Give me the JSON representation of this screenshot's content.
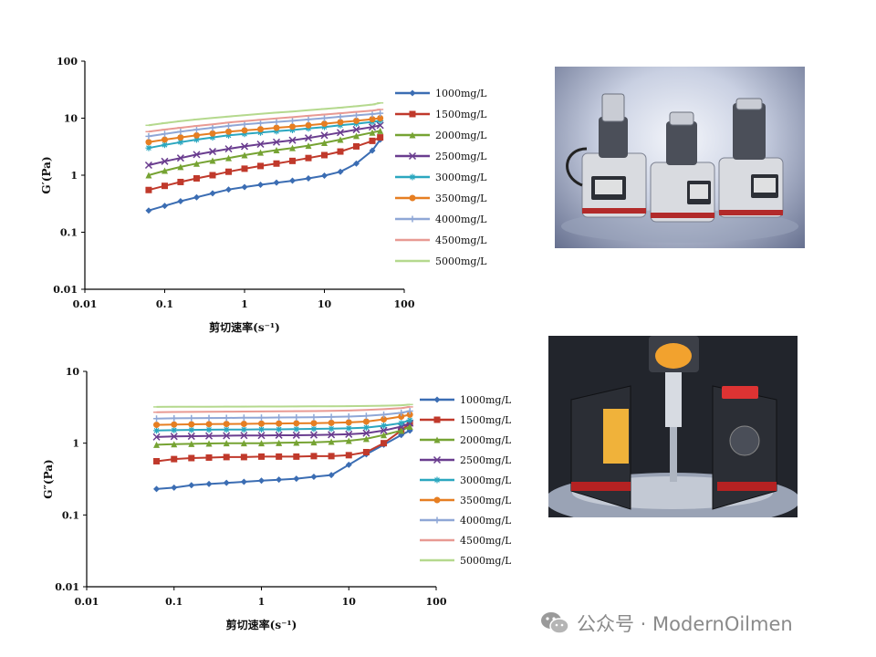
{
  "chart_data": [
    {
      "type": "line",
      "title": "",
      "xlabel": "剪切速率(s⁻¹)",
      "ylabel": "G′(Pa)",
      "xscale": "log",
      "yscale": "log",
      "xlim": [
        0.01,
        100
      ],
      "ylim": [
        0.01,
        100
      ],
      "xticks": [
        "0.01",
        "0.1",
        "1",
        "10",
        "100"
      ],
      "yticks": [
        "0.01",
        "0.1",
        "1",
        "10",
        "100"
      ],
      "grid": false,
      "legend_position": "right",
      "x": [
        0.063,
        0.1,
        0.158,
        0.251,
        0.398,
        0.631,
        1,
        1.585,
        2.512,
        3.981,
        6.31,
        10,
        15.85,
        25.12,
        39.81,
        50
      ],
      "series": [
        {
          "name": "1000mg/L",
          "color": "#3b6db3",
          "marker": "diamond",
          "values": [
            0.24,
            0.29,
            0.35,
            0.41,
            0.48,
            0.56,
            0.62,
            0.68,
            0.74,
            0.8,
            0.88,
            0.98,
            1.15,
            1.6,
            2.7,
            4.2
          ]
        },
        {
          "name": "1500mg/L",
          "color": "#c0392b",
          "marker": "square",
          "values": [
            0.55,
            0.65,
            0.76,
            0.88,
            1.0,
            1.15,
            1.3,
            1.45,
            1.6,
            1.78,
            2.0,
            2.25,
            2.6,
            3.2,
            4.0,
            4.6
          ]
        },
        {
          "name": "2000mg/L",
          "color": "#76a333",
          "marker": "triangle",
          "values": [
            1.0,
            1.2,
            1.4,
            1.6,
            1.8,
            2.0,
            2.25,
            2.5,
            2.75,
            3.0,
            3.3,
            3.7,
            4.2,
            4.9,
            5.6,
            6.0
          ]
        },
        {
          "name": "2500mg/L",
          "color": "#6a3d8f",
          "marker": "x",
          "values": [
            1.5,
            1.75,
            2.0,
            2.3,
            2.6,
            2.9,
            3.2,
            3.5,
            3.8,
            4.1,
            4.5,
            5.0,
            5.6,
            6.3,
            7.0,
            7.5
          ]
        },
        {
          "name": "3000mg/L",
          "color": "#2ba7bf",
          "marker": "star",
          "values": [
            3.0,
            3.4,
            3.8,
            4.2,
            4.6,
            5.0,
            5.3,
            5.6,
            5.9,
            6.2,
            6.6,
            7.0,
            7.5,
            8.0,
            8.6,
            9.0
          ]
        },
        {
          "name": "3500mg/L",
          "color": "#e67e22",
          "marker": "circle",
          "values": [
            3.8,
            4.2,
            4.6,
            5.0,
            5.4,
            5.8,
            6.1,
            6.4,
            6.8,
            7.1,
            7.5,
            8.0,
            8.5,
            9.0,
            9.6,
            10.0
          ]
        },
        {
          "name": "4000mg/L",
          "color": "#8fa7d6",
          "marker": "plus",
          "values": [
            4.8,
            5.3,
            5.8,
            6.3,
            6.8,
            7.3,
            7.8,
            8.2,
            8.6,
            9.0,
            9.5,
            10.0,
            10.6,
            11.2,
            11.8,
            12.2
          ]
        },
        {
          "name": "4500mg/L",
          "color": "#e89a93",
          "marker": "dash",
          "values": [
            5.8,
            6.3,
            6.8,
            7.3,
            7.8,
            8.4,
            8.9,
            9.4,
            9.9,
            10.4,
            11.0,
            11.6,
            12.2,
            12.9,
            13.6,
            14.2
          ]
        },
        {
          "name": "5000mg/L",
          "color": "#b5d98e",
          "marker": "dash",
          "values": [
            7.5,
            8.2,
            8.9,
            9.5,
            10.1,
            10.7,
            11.3,
            11.9,
            12.5,
            13.1,
            13.8,
            14.5,
            15.3,
            16.2,
            17.3,
            18.5
          ]
        }
      ]
    },
    {
      "type": "line",
      "title": "",
      "xlabel": "剪切速率(s⁻¹)",
      "ylabel": "G″(Pa)",
      "xscale": "log",
      "yscale": "log",
      "xlim": [
        0.01,
        100
      ],
      "ylim": [
        0.01,
        10
      ],
      "xticks": [
        "0.01",
        "0.1",
        "1",
        "10",
        "100"
      ],
      "yticks": [
        "0.01",
        "0.1",
        "1",
        "10"
      ],
      "grid": false,
      "legend_position": "right",
      "x": [
        0.063,
        0.1,
        0.158,
        0.251,
        0.398,
        0.631,
        1,
        1.585,
        2.512,
        3.981,
        6.31,
        10,
        15.85,
        25.12,
        39.81,
        50
      ],
      "series": [
        {
          "name": "1000mg/L",
          "color": "#3b6db3",
          "marker": "diamond",
          "values": [
            0.23,
            0.24,
            0.26,
            0.27,
            0.28,
            0.29,
            0.3,
            0.31,
            0.32,
            0.34,
            0.36,
            0.5,
            0.7,
            0.95,
            1.3,
            1.5
          ]
        },
        {
          "name": "1500mg/L",
          "color": "#c0392b",
          "marker": "square",
          "values": [
            0.56,
            0.6,
            0.62,
            0.63,
            0.64,
            0.64,
            0.65,
            0.65,
            0.65,
            0.66,
            0.66,
            0.68,
            0.75,
            1.0,
            1.5,
            1.9
          ]
        },
        {
          "name": "2000mg/L",
          "color": "#76a333",
          "marker": "triangle",
          "values": [
            0.95,
            0.97,
            0.98,
            0.99,
            1.0,
            1.0,
            1.0,
            1.01,
            1.02,
            1.03,
            1.05,
            1.08,
            1.15,
            1.3,
            1.5,
            1.7
          ]
        },
        {
          "name": "2500mg/L",
          "color": "#6a3d8f",
          "marker": "x",
          "values": [
            1.22,
            1.24,
            1.25,
            1.26,
            1.27,
            1.28,
            1.28,
            1.29,
            1.29,
            1.3,
            1.31,
            1.33,
            1.38,
            1.5,
            1.7,
            1.9
          ]
        },
        {
          "name": "3000mg/L",
          "color": "#2ba7bf",
          "marker": "star",
          "values": [
            1.5,
            1.52,
            1.53,
            1.54,
            1.55,
            1.55,
            1.56,
            1.56,
            1.57,
            1.58,
            1.59,
            1.61,
            1.65,
            1.75,
            1.9,
            2.1
          ]
        },
        {
          "name": "3500mg/L",
          "color": "#e67e22",
          "marker": "circle",
          "values": [
            1.8,
            1.82,
            1.83,
            1.84,
            1.85,
            1.86,
            1.87,
            1.88,
            1.89,
            1.9,
            1.92,
            1.95,
            2.0,
            2.15,
            2.35,
            2.5
          ]
        },
        {
          "name": "4000mg/L",
          "color": "#8fa7d6",
          "marker": "plus",
          "values": [
            2.2,
            2.22,
            2.23,
            2.24,
            2.25,
            2.26,
            2.27,
            2.28,
            2.29,
            2.3,
            2.32,
            2.35,
            2.4,
            2.5,
            2.65,
            2.8
          ]
        },
        {
          "name": "4500mg/L",
          "color": "#e89a93",
          "marker": "dash",
          "values": [
            2.7,
            2.72,
            2.73,
            2.74,
            2.75,
            2.76,
            2.77,
            2.78,
            2.79,
            2.8,
            2.82,
            2.85,
            2.9,
            2.98,
            3.08,
            3.2
          ]
        },
        {
          "name": "5000mg/L",
          "color": "#b5d98e",
          "marker": "dash",
          "values": [
            3.2,
            3.21,
            3.22,
            3.22,
            3.23,
            3.23,
            3.24,
            3.24,
            3.25,
            3.26,
            3.27,
            3.28,
            3.3,
            3.33,
            3.38,
            3.45
          ]
        }
      ]
    }
  ],
  "watermark": {
    "icon": "wechat-icon",
    "text": "公众号 · ModernOilmen"
  }
}
